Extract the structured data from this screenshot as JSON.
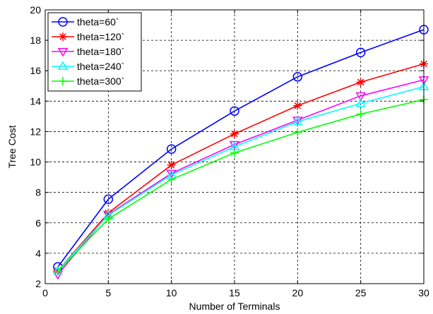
{
  "chart_data": {
    "type": "line",
    "title": "",
    "xlabel": "Number of Terminals",
    "ylabel": "Tree Cost",
    "xlim": [
      0,
      30
    ],
    "ylim": [
      2,
      20
    ],
    "xticks": [
      0,
      5,
      10,
      15,
      20,
      25,
      30
    ],
    "yticks": [
      2,
      4,
      6,
      8,
      10,
      12,
      14,
      16,
      18,
      20
    ],
    "grid": true,
    "legend_position": "top-left",
    "x": [
      1,
      5,
      10,
      15,
      20,
      25,
      30
    ],
    "series": [
      {
        "name": "theta=60`",
        "color": "#0000ff",
        "marker": "circle",
        "values": [
          3.1,
          7.55,
          10.85,
          13.35,
          15.6,
          17.2,
          18.7
        ]
      },
      {
        "name": "theta=120`",
        "color": "#ff0000",
        "marker": "asterisk",
        "values": [
          2.85,
          6.65,
          9.8,
          11.85,
          13.7,
          15.25,
          16.45
        ]
      },
      {
        "name": "theta=180`",
        "color": "#ff00ff",
        "marker": "triangle-down",
        "values": [
          2.6,
          6.55,
          9.25,
          11.15,
          12.75,
          14.35,
          15.4
        ]
      },
      {
        "name": "theta=240`",
        "color": "#00ffff",
        "marker": "triangle-up",
        "values": [
          2.85,
          6.5,
          9.15,
          11.0,
          12.65,
          13.85,
          14.95
        ]
      },
      {
        "name": "theta=300`",
        "color": "#00ff00",
        "marker": "plus",
        "values": [
          2.8,
          6.25,
          8.85,
          10.6,
          11.95,
          13.15,
          14.1
        ]
      }
    ]
  }
}
